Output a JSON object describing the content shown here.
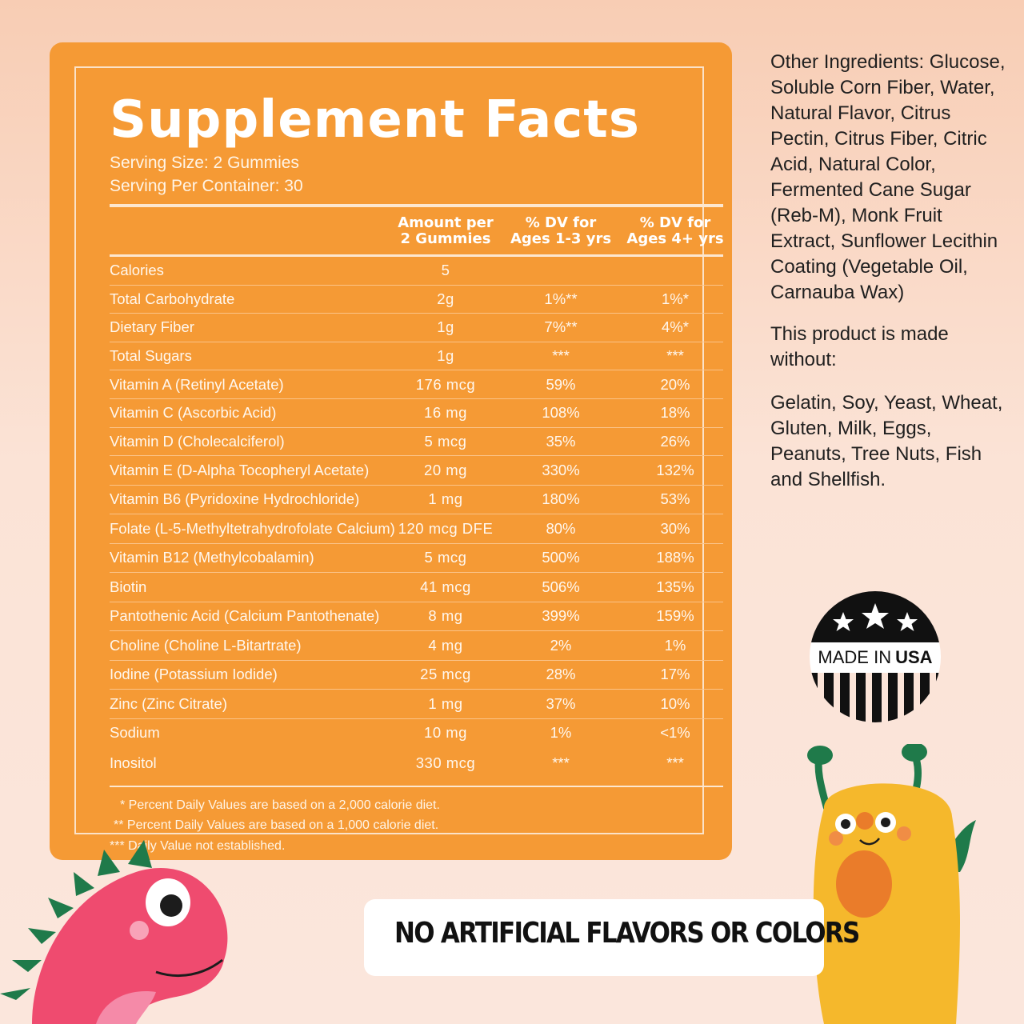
{
  "colors": {
    "panel": "#f59a35",
    "panel_border": "#fbe2c8",
    "background": "#fbe3d6",
    "text_dark": "#1f1f1f"
  },
  "facts": {
    "title": "Supplement Facts",
    "serving_size": "Serving Size: 2 Gummies",
    "serving_per_container": "Serving Per Container: 30",
    "columns": {
      "amount": [
        "Amount per",
        "2 Gummies"
      ],
      "dv_young": [
        "% DV for",
        "Ages 1-3 yrs"
      ],
      "dv_older": [
        "% DV for",
        "Ages 4+ yrs"
      ]
    },
    "rows": [
      {
        "name": "Calories",
        "amount": "5",
        "dv1": "",
        "dv2": ""
      },
      {
        "name": "Total Carbohydrate",
        "amount": "2g",
        "dv1": "1%**",
        "dv2": "1%*"
      },
      {
        "name": "Dietary Fiber",
        "amount": "1g",
        "dv1": "7%**",
        "dv2": "4%*"
      },
      {
        "name": "Total Sugars",
        "amount": "1g",
        "dv1": "***",
        "dv2": "***"
      },
      {
        "name": "Vitamin A (Retinyl Acetate)",
        "amount": "176 mcg",
        "dv1": "59%",
        "dv2": "20%"
      },
      {
        "name": "Vitamin C (Ascorbic Acid)",
        "amount": "16 mg",
        "dv1": "108%",
        "dv2": "18%"
      },
      {
        "name": "Vitamin D (Cholecalciferol)",
        "amount": "5 mcg",
        "dv1": "35%",
        "dv2": "26%"
      },
      {
        "name": "Vitamin E (D-Alpha Tocopheryl Acetate)",
        "amount": "20 mg",
        "dv1": "330%",
        "dv2": "132%"
      },
      {
        "name": "Vitamin B6 (Pyridoxine Hydrochloride)",
        "amount": "1 mg",
        "dv1": "180%",
        "dv2": "53%"
      },
      {
        "name": "Folate (L-5-Methyltetrahydrofolate Calcium)",
        "amount": "120 mcg DFE",
        "dv1": "80%",
        "dv2": "30%"
      },
      {
        "name": "Vitamin B12 (Methylcobalamin)",
        "amount": "5 mcg",
        "dv1": "500%",
        "dv2": "188%"
      },
      {
        "name": "Biotin",
        "amount": "41 mcg",
        "dv1": "506%",
        "dv2": "135%"
      },
      {
        "name": "Pantothenic Acid (Calcium Pantothenate)",
        "amount": "8 mg",
        "dv1": "399%",
        "dv2": "159%"
      },
      {
        "name": "Choline (Choline L-Bitartrate)",
        "amount": "4 mg",
        "dv1": "2%",
        "dv2": "1%"
      },
      {
        "name": "Iodine (Potassium Iodide)",
        "amount": "25 mcg",
        "dv1": "28%",
        "dv2": "17%"
      },
      {
        "name": "Zinc (Zinc Citrate)",
        "amount": "1 mg",
        "dv1": "37%",
        "dv2": "10%"
      },
      {
        "name": "Sodium",
        "amount": "10 mg",
        "dv1": "1%",
        "dv2": "<1%"
      }
    ],
    "extra_row": {
      "name": "Inositol",
      "amount": "330 mcg",
      "dv1": "***",
      "dv2": "***"
    },
    "footnotes": [
      "*  Percent Daily Values are based on a 2,000 calorie diet.",
      "**  Percent Daily Values are based on a 1,000 calorie diet.",
      "***  Daily Value not established."
    ]
  },
  "side": {
    "other_ingredients": "Other Ingredients: Glucose,  Soluble Corn Fiber, Water, Natural Flavor, Citrus Pectin, Citrus Fiber, Citric Acid, Natural Color, Fermented Cane Sugar (Reb-M), Monk Fruit Extract, Sunflower Lecithin Coating (Vegetable Oil, Carnauba Wax)",
    "made_without_label": "This product is made without:",
    "made_without_list": "Gelatin, Soy, Yeast, Wheat, Gluten, Milk, Eggs, Peanuts, Tree Nuts, Fish and Shellfish."
  },
  "badge": {
    "made_in": "MADE IN",
    "country": "USA"
  },
  "banner": {
    "text": "NO ARTIFICIAL FLAVORS OR COLORS"
  }
}
